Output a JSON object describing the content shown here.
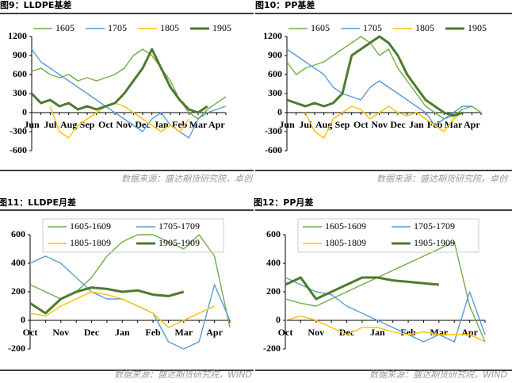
{
  "chart_data": [
    {
      "type": "line",
      "title": "图9：LLDPE基差",
      "source": "数据来源：盛达期货研究院，卓创",
      "legend": "top",
      "categories": [
        "Jun",
        null,
        "Jul",
        null,
        "Aug",
        null,
        "Sep",
        null,
        "Oct",
        null,
        "Nov",
        null,
        "Dec",
        null,
        "Jan",
        null,
        "Feb",
        null,
        "Mar",
        null,
        "Apr",
        null
      ],
      "ylim": [
        -600,
        1200
      ],
      "yticks": [
        -600,
        -300,
        0,
        300,
        600,
        900,
        1200
      ],
      "series": [
        {
          "name": "1605",
          "color": "#70ad47",
          "values": [
            650,
            700,
            600,
            550,
            600,
            500,
            550,
            500,
            550,
            600,
            700,
            900,
            1000,
            900,
            700,
            500,
            200,
            0,
            -100,
            50,
            150,
            250
          ]
        },
        {
          "name": "1705",
          "color": "#5b9bd5",
          "values": [
            1000,
            800,
            700,
            600,
            500,
            400,
            300,
            200,
            100,
            0,
            -100,
            -200,
            -300,
            -100,
            0,
            -200,
            -300,
            -400,
            -100,
            0,
            50,
            100
          ]
        },
        {
          "name": "1805",
          "color": "#ffc000",
          "values": [
            null,
            null,
            100,
            -300,
            -400,
            -200,
            -100,
            0,
            100,
            150,
            100,
            0,
            -100,
            -200,
            -300,
            -200,
            -300,
            -100,
            null,
            null,
            null,
            null
          ]
        },
        {
          "name": "1905",
          "color": "#4e7a2e",
          "values": [
            300,
            150,
            200,
            100,
            150,
            50,
            100,
            50,
            100,
            150,
            300,
            500,
            700,
            1000,
            700,
            400,
            200,
            50,
            0,
            100,
            null,
            null
          ]
        }
      ]
    },
    {
      "type": "line",
      "title": "图10：PP基差",
      "source": "数据来源：盛达期货研究院，卓创",
      "legend": "top",
      "categories": [
        "Jun",
        null,
        "Jul",
        null,
        "Aug",
        null,
        "Sep",
        null,
        "Oct",
        null,
        "Nov",
        null,
        "Dec",
        null,
        "Jan",
        null,
        "Feb",
        null,
        "Mar",
        null,
        "Apr",
        null
      ],
      "ylim": [
        -600,
        1200
      ],
      "yticks": [
        -600,
        -300,
        0,
        300,
        600,
        900,
        1200
      ],
      "series": [
        {
          "name": "1605",
          "color": "#70ad47",
          "values": [
            800,
            600,
            700,
            750,
            800,
            900,
            1000,
            1100,
            1200,
            1100,
            900,
            1000,
            700,
            500,
            300,
            100,
            0,
            -100,
            -50,
            50,
            100,
            0
          ]
        },
        {
          "name": "1705",
          "color": "#5b9bd5",
          "values": [
            1000,
            900,
            800,
            700,
            600,
            400,
            300,
            250,
            200,
            400,
            500,
            400,
            300,
            200,
            100,
            0,
            -200,
            -100,
            0,
            100,
            100,
            null
          ]
        },
        {
          "name": "1805",
          "color": "#ffc000",
          "values": [
            null,
            null,
            0,
            -300,
            -400,
            -100,
            0,
            100,
            50,
            -100,
            0,
            100,
            0,
            -50,
            0,
            -100,
            -200,
            -300,
            -100,
            0,
            null,
            null
          ]
        },
        {
          "name": "1905",
          "color": "#4e7a2e",
          "values": [
            200,
            150,
            100,
            150,
            100,
            150,
            300,
            900,
            1000,
            1100,
            1200,
            1100,
            900,
            600,
            400,
            200,
            100,
            0,
            -50,
            0,
            null,
            null
          ]
        }
      ]
    },
    {
      "type": "line",
      "title": "图11：LLDPE月差",
      "source": "数据来源：盛达期货研究院，WIND",
      "legend": "upper left",
      "categories": [
        "Oct",
        null,
        "Nov",
        null,
        "Dec",
        null,
        "Jan",
        null,
        "Feb",
        null,
        "Mar",
        null,
        "Apr",
        null
      ],
      "ylim": [
        -200,
        600
      ],
      "yticks": [
        -200,
        0,
        200,
        400,
        600
      ],
      "series": [
        {
          "name": "1605-1609",
          "color": "#70ad47",
          "values": [
            250,
            200,
            150,
            200,
            300,
            450,
            550,
            600,
            600,
            550,
            500,
            600,
            450,
            -50
          ]
        },
        {
          "name": "1705-1709",
          "color": "#5b9bd5",
          "values": [
            400,
            450,
            400,
            300,
            200,
            150,
            150,
            100,
            50,
            -150,
            -200,
            -150,
            250,
            0
          ]
        },
        {
          "name": "1805-1809",
          "color": "#ffc000",
          "values": [
            50,
            30,
            100,
            150,
            200,
            180,
            150,
            100,
            50,
            -50,
            0,
            50,
            100,
            null
          ]
        },
        {
          "name": "1905-1909",
          "color": "#4e7a2e",
          "values": [
            120,
            50,
            150,
            200,
            230,
            220,
            200,
            210,
            180,
            170,
            200,
            null,
            null,
            null
          ]
        }
      ]
    },
    {
      "type": "line",
      "title": "图12：PP月差",
      "source": "数据来源：盛达期货研究院，WIND",
      "legend": "upper left",
      "categories": [
        "Oct",
        null,
        "Nov",
        null,
        "Dec",
        null,
        "Jan",
        null,
        "Feb",
        null,
        "Mar",
        null,
        "Apr",
        null
      ],
      "ylim": [
        -200,
        600
      ],
      "yticks": [
        -200,
        0,
        200,
        400,
        600
      ],
      "series": [
        {
          "name": "1605-1609",
          "color": "#70ad47",
          "values": [
            150,
            120,
            100,
            150,
            200,
            250,
            300,
            350,
            400,
            450,
            500,
            550,
            100,
            -150
          ]
        },
        {
          "name": "1705-1709",
          "color": "#5b9bd5",
          "values": [
            300,
            250,
            200,
            180,
            100,
            50,
            0,
            -50,
            -100,
            -150,
            -100,
            -150,
            200,
            -100
          ]
        },
        {
          "name": "1805-1809",
          "color": "#ffc000",
          "values": [
            0,
            30,
            0,
            -50,
            -100,
            -50,
            -50,
            -80,
            -100,
            -80,
            -100,
            -100,
            -100,
            -150
          ]
        },
        {
          "name": "1905-1909",
          "color": "#4e7a2e",
          "values": [
            250,
            300,
            150,
            200,
            250,
            300,
            300,
            280,
            270,
            260,
            250,
            null,
            null,
            null
          ]
        }
      ]
    }
  ]
}
